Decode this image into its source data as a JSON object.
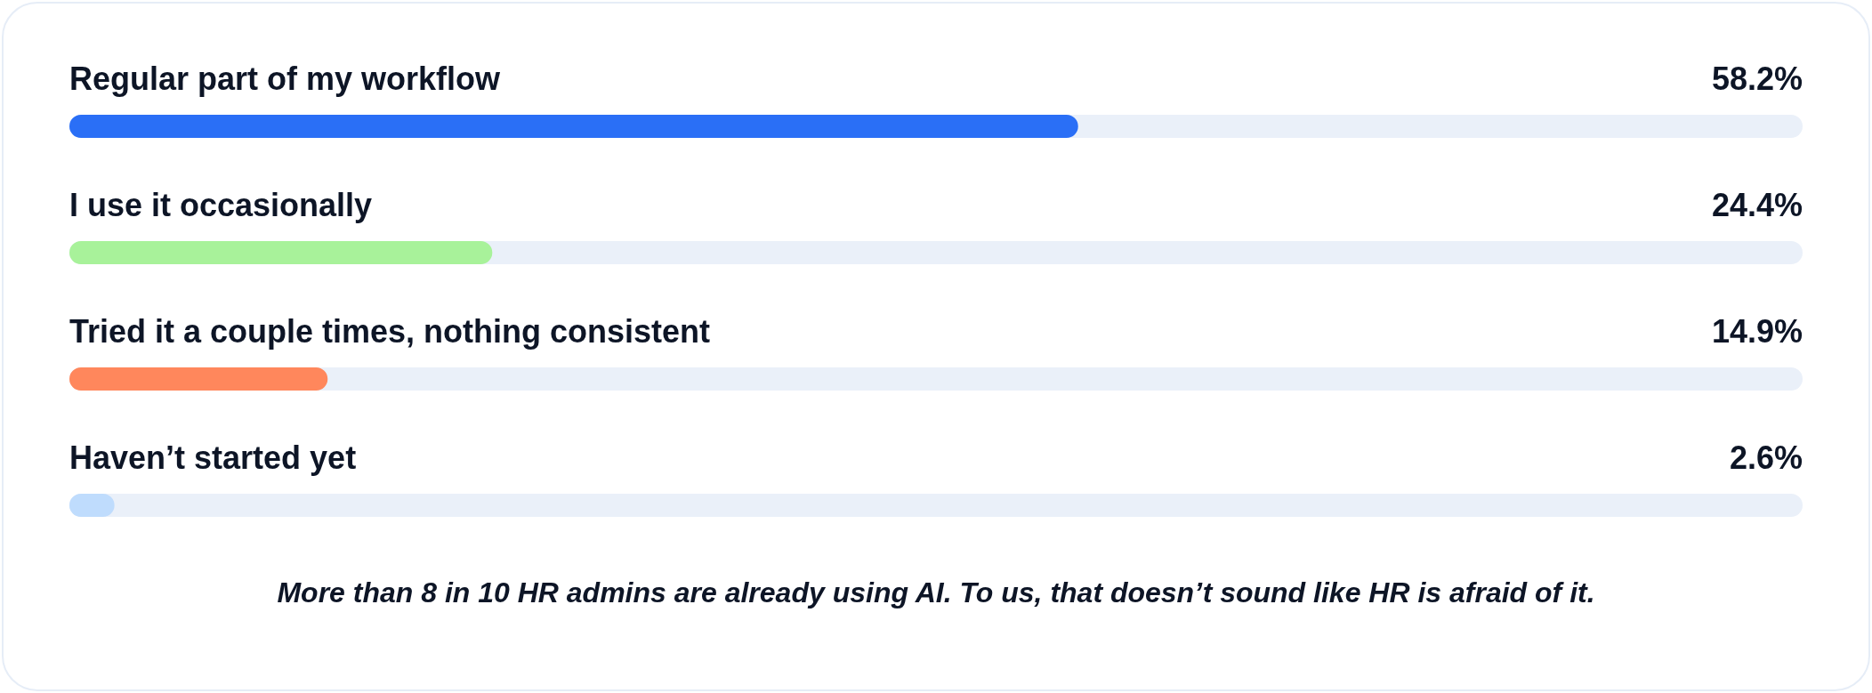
{
  "chart_data": {
    "type": "bar",
    "orientation": "horizontal",
    "categories": [
      "Regular part of my workflow",
      "I use it occasionally",
      "Tried it a couple times, nothing consistent",
      "Haven’t started yet"
    ],
    "values": [
      58.2,
      24.4,
      14.9,
      2.6
    ],
    "value_labels": [
      "58.2%",
      "24.4%",
      "14.9%",
      "2.6%"
    ],
    "colors": [
      "#2a6ff6",
      "#a8f29a",
      "#ff875c",
      "#bfdcfd"
    ],
    "xlim": [
      0,
      100
    ],
    "annotations": [
      "More than 8 in 10 HR admins are already using AI. To us, that doesn’t sound like HR is afraid of it."
    ]
  }
}
